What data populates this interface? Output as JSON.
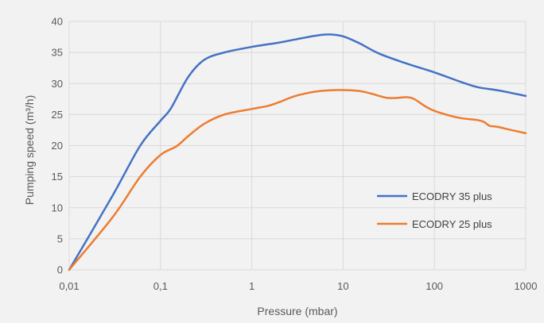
{
  "chart_data": {
    "type": "line",
    "title": "",
    "xlabel": "Pressure (mbar)",
    "ylabel": "Pumping speed (m³/h)",
    "x_scale": "log",
    "xlim": [
      0.01,
      1000
    ],
    "ylim": [
      0,
      40
    ],
    "x_ticks": [
      0.01,
      0.1,
      1,
      10,
      100,
      1000
    ],
    "x_tick_labels": [
      "0,01",
      "0,1",
      "1",
      "10",
      "100",
      "1000"
    ],
    "y_ticks": [
      0,
      5,
      10,
      15,
      20,
      25,
      30,
      35,
      40
    ],
    "y_tick_labels": [
      "0",
      "5",
      "10",
      "15",
      "20",
      "25",
      "30",
      "35",
      "40"
    ],
    "grid": true,
    "legend_position": "lower-right",
    "series": [
      {
        "name": "ECODRY 35 plus",
        "color": "#4472c4",
        "x": [
          0.01,
          0.03,
          0.06,
          0.1,
          0.13,
          0.2,
          0.3,
          0.5,
          1,
          2,
          3,
          5,
          7,
          10,
          15,
          25,
          50,
          100,
          200,
          300,
          500,
          1000
        ],
        "y": [
          0,
          12,
          20,
          24,
          26,
          31,
          33.8,
          35,
          35.9,
          36.6,
          37.1,
          37.7,
          37.9,
          37.6,
          36.5,
          34.8,
          33.2,
          31.8,
          30.2,
          29.4,
          28.9,
          28
        ]
      },
      {
        "name": "ECODRY 25 plus",
        "color": "#ed7d31",
        "x": [
          0.01,
          0.03,
          0.06,
          0.1,
          0.15,
          0.2,
          0.3,
          0.5,
          1,
          1.5,
          2,
          3,
          5,
          7,
          10,
          15,
          20,
          30,
          40,
          50,
          60,
          80,
          100,
          150,
          200,
          300,
          350,
          400,
          450,
          500,
          700,
          1000
        ],
        "y": [
          0,
          8.5,
          15,
          18.5,
          19.9,
          21.5,
          23.5,
          25,
          25.9,
          26.4,
          27,
          28,
          28.7,
          28.9,
          28.95,
          28.8,
          28.4,
          27.7,
          27.7,
          27.8,
          27.5,
          26.3,
          25.6,
          24.8,
          24.4,
          24.1,
          23.8,
          23.2,
          23.1,
          23,
          22.5,
          22
        ]
      }
    ]
  }
}
